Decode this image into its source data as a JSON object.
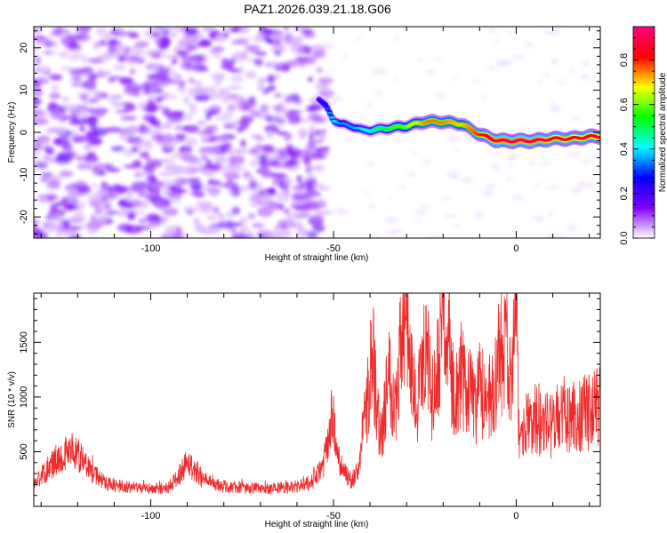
{
  "title": "PAZ1.2026.039.21.18.G06",
  "chart_data": [
    {
      "type": "heatmap",
      "xlabel": "Height of straight line (km)",
      "ylabel": "Frequency (Hz)",
      "xlim": [
        -132,
        23
      ],
      "ylim": [
        -25,
        25
      ],
      "xticks": [
        -100,
        -50,
        0
      ],
      "yticks": [
        20,
        10,
        0,
        -10,
        -20
      ],
      "colorbar": {
        "label": "Normalized spectral amplitude",
        "range": [
          0,
          0.95
        ],
        "ticks": [
          0.0,
          0.2,
          0.4,
          0.6,
          0.8
        ],
        "colors": [
          "#ffffff",
          "#8000ff",
          "#0000ff",
          "#00ffff",
          "#00ff00",
          "#ffff00",
          "#ff0000",
          "#ff0080"
        ]
      },
      "ridge": {
        "x": [
          -54,
          -52,
          -50,
          -48,
          -45,
          -42,
          -40,
          -35,
          -30,
          -25,
          -20,
          -15,
          -10,
          -5,
          0,
          5,
          10,
          15,
          20,
          23
        ],
        "y": [
          8,
          6,
          3,
          2,
          1.5,
          0.5,
          0.5,
          1,
          1.5,
          2.5,
          2.5,
          2,
          -0.5,
          -2,
          -2,
          -2,
          -1.5,
          -1.5,
          -1,
          -1
        ],
        "amplitude": [
          0.2,
          0.3,
          0.4,
          0.35,
          0.35,
          0.4,
          0.45,
          0.55,
          0.6,
          0.75,
          0.75,
          0.7,
          0.8,
          0.9,
          0.9,
          0.9,
          0.85,
          0.85,
          0.85,
          0.85
        ]
      }
    },
    {
      "type": "line",
      "xlabel": "Height of straight line (km)",
      "ylabel": "SNR (10 * v/v)",
      "xlim": [
        -132,
        23
      ],
      "ylim": [
        0,
        1950
      ],
      "xticks": [
        -100,
        -50,
        0
      ],
      "yticks": [
        500,
        1000,
        1500
      ],
      "color": "#ee2b2b",
      "series": [
        {
          "name": "SNR",
          "x": [
            -132,
            -128,
            -125,
            -122,
            -120,
            -117,
            -114,
            -110,
            -105,
            -100,
            -95,
            -92,
            -90,
            -88,
            -85,
            -80,
            -75,
            -70,
            -65,
            -60,
            -56,
            -53,
            -51,
            -50,
            -49,
            -47,
            -45,
            -43,
            -42,
            -41,
            -40,
            -39,
            -38,
            -37,
            -36,
            -35,
            -34,
            -33,
            -32,
            -31,
            -30,
            -29,
            -28,
            -27,
            -26,
            -25,
            -24,
            -23,
            -22,
            -21,
            -20,
            -19,
            -18,
            -17,
            -16,
            -15,
            -14,
            -13,
            -12,
            -11,
            -10,
            -9,
            -8,
            -7,
            -6,
            -5,
            -4,
            -3,
            -2,
            -1,
            0,
            0.5,
            1,
            2,
            5,
            8,
            10,
            12,
            15,
            18,
            20,
            22,
            23
          ],
          "y": [
            200,
            350,
            450,
            520,
            480,
            350,
            250,
            190,
            170,
            160,
            170,
            300,
            420,
            330,
            220,
            180,
            170,
            160,
            170,
            180,
            220,
            350,
            650,
            800,
            450,
            320,
            220,
            350,
            700,
            900,
            1250,
            1300,
            820,
            620,
            920,
            1250,
            1100,
            900,
            1350,
            1650,
            1800,
            1300,
            1050,
            1000,
            1200,
            1500,
            1250,
            980,
            1080,
            1400,
            1700,
            1600,
            1300,
            1100,
            1000,
            1200,
            1050,
            1050,
            980,
            900,
            1100,
            1000,
            950,
            1000,
            1050,
            1300,
            1400,
            1450,
            1350,
            1250,
            1900,
            1000,
            500,
            700,
            800,
            750,
            720,
            780,
            830,
            850,
            850,
            900,
            950
          ]
        }
      ]
    }
  ]
}
